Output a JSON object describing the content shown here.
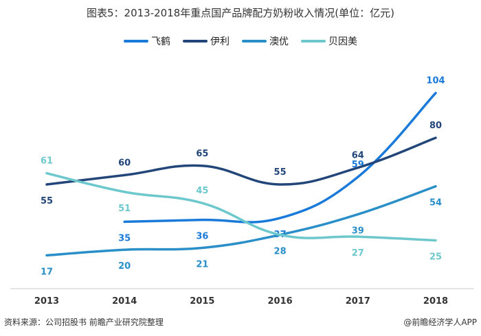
{
  "chart_data": {
    "type": "line",
    "title": "图表5：2013-2018年重点国产品牌配方奶粉收入情况(单位：亿元)",
    "xlabel": "",
    "ylabel": "",
    "categories": [
      "2013",
      "2014",
      "2015",
      "2016",
      "2017",
      "2018"
    ],
    "ylim": [
      0,
      110
    ],
    "grid": false,
    "smooth": true,
    "legend_position": "top",
    "series": [
      {
        "name": "飞鹤",
        "color": "#1a7ad9",
        "values": [
          null,
          35,
          36,
          37,
          59,
          104
        ],
        "labels": [
          null,
          "35",
          "36",
          "37",
          "59",
          "104"
        ],
        "label_pos": [
          null,
          "below",
          "below",
          "below",
          "above",
          "above"
        ]
      },
      {
        "name": "伊利",
        "color": "#23467a",
        "values": [
          55,
          60,
          65,
          55,
          64,
          80
        ],
        "labels": [
          "55",
          "60",
          "65",
          "55",
          "64",
          "80"
        ],
        "label_pos": [
          "below",
          "above",
          "above",
          "above",
          "above",
          "above"
        ]
      },
      {
        "name": "澳优",
        "color": "#2a8ec9",
        "values": [
          17,
          20,
          21,
          28,
          39,
          54
        ],
        "labels": [
          "17",
          "20",
          "21",
          "28",
          "39",
          "54"
        ],
        "label_pos": [
          "below",
          "below",
          "below",
          "below",
          "below",
          "below"
        ]
      },
      {
        "name": "贝因美",
        "color": "#6cc8cc",
        "values": [
          61,
          51,
          45,
          28,
          27,
          25
        ],
        "labels": [
          "61",
          "51",
          "45",
          null,
          "27",
          "25"
        ],
        "label_pos": [
          "above",
          "below",
          "above",
          null,
          "below",
          "below"
        ]
      }
    ]
  },
  "footer": {
    "source": "资料来源：公司招股书 前瞻产业研究院整理",
    "brand": "@前瞻经济学人APP"
  }
}
